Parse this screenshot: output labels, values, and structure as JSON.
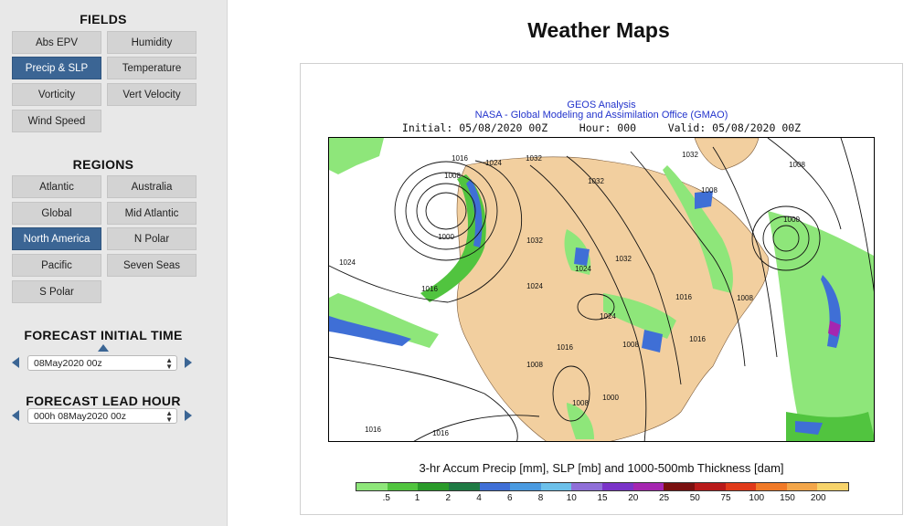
{
  "sidebar": {
    "fields_title": "FIELDS",
    "fields": [
      "Abs EPV",
      "Humidity",
      "Precip & SLP",
      "Temperature",
      "Vorticity",
      "Vert Velocity",
      "Wind Speed"
    ],
    "fields_active": "Precip & SLP",
    "regions_title": "REGIONS",
    "regions": [
      "Atlantic",
      "Australia",
      "Global",
      "Mid Atlantic",
      "North America",
      "N Polar",
      "Pacific",
      "Seven Seas",
      "S Polar"
    ],
    "regions_active": "North America",
    "init_title": "FORECAST INITIAL TIME",
    "init_value": "08May2020 00z",
    "lead_title": "FORECAST LEAD HOUR",
    "lead_value": "000h 08May2020 00z"
  },
  "main": {
    "title": "Weather Maps",
    "header_line1": "GEOS Analysis",
    "header_line2": "NASA - Global Modeling and Assimilation Office (GMAO)",
    "header_line3": "Initial: 05/08/2020 00Z     Hour: 000     Valid: 05/08/2020 00Z",
    "caption": "3-hr Accum Precip [mm], SLP [mb] and 1000-500mb Thickness [dam]",
    "isobar_labels": [
      "1016",
      "1024",
      "1032",
      "1008",
      "1000",
      "1032",
      "1032",
      "1024",
      "1024",
      "1016",
      "1016",
      "1032",
      "1008",
      "1000",
      "1008",
      "1016",
      "1024",
      "1008",
      "1016",
      "1008",
      "1008",
      "1000",
      "1016",
      "1016",
      "1008",
      "1024",
      "1032"
    ],
    "legend": {
      "labels": [
        ".5",
        "1",
        "2",
        "4",
        "6",
        "8",
        "10",
        "15",
        "20",
        "25",
        "50",
        "75",
        "100",
        "150",
        "200"
      ],
      "colors": [
        "#8ee67a",
        "#51c43f",
        "#2a9a2a",
        "#1f7a44",
        "#3f6fd6",
        "#4a9ae0",
        "#6cc0ea",
        "#8f6fd8",
        "#7a33c8",
        "#a526b0",
        "#7a1010",
        "#b81a1a",
        "#e03a1a",
        "#f07a28",
        "#f3a64a",
        "#f7d36a"
      ]
    },
    "colors": {
      "land": "#f2cf9f",
      "water": "#ffffff",
      "accent": "#3b6594"
    }
  }
}
